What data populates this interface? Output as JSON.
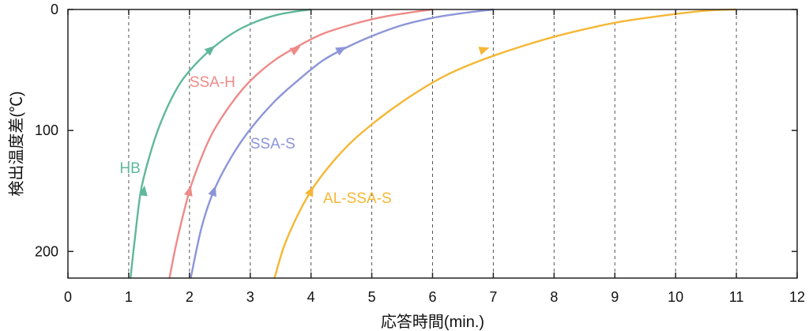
{
  "chart_data": {
    "type": "line",
    "xlabel": "応答時間(min.)",
    "ylabel": "検出温度差(℃)",
    "xlim": [
      0,
      12
    ],
    "ylim": [
      0,
      222
    ],
    "y_inverted": true,
    "x_ticks": [
      "0",
      "1",
      "2",
      "3",
      "4",
      "5",
      "6",
      "7",
      "8",
      "9",
      "10",
      "11",
      "12"
    ],
    "y_ticks": [
      "0",
      "100",
      "200"
    ],
    "grid": "vertical-dashed",
    "series": [
      {
        "name": "HB",
        "color": "#5fb89b",
        "x": [
          1.03,
          1.1,
          1.2,
          1.35,
          1.5,
          1.7,
          1.9,
          2.2,
          2.5,
          2.8,
          3.1,
          3.4,
          3.7,
          4.0
        ],
        "y": [
          222,
          190,
          150,
          120,
          97,
          74,
          57,
          40,
          27,
          17,
          10,
          5,
          2,
          0
        ]
      },
      {
        "name": "SSA-H",
        "color": "#ee8a88",
        "x": [
          1.67,
          1.8,
          2.0,
          2.2,
          2.4,
          2.7,
          3.0,
          3.4,
          3.8,
          4.2,
          4.7,
          5.2,
          5.7,
          6.0
        ],
        "y": [
          222,
          190,
          150,
          122,
          100,
          77,
          59,
          42,
          30,
          20,
          12,
          6,
          2,
          0
        ]
      },
      {
        "name": "SSA-S",
        "color": "#8c95d8",
        "x": [
          2.02,
          2.2,
          2.4,
          2.7,
          3.0,
          3.4,
          3.8,
          4.2,
          4.6,
          5.0,
          5.5,
          6.0,
          6.5,
          7.0
        ],
        "y": [
          222,
          180,
          150,
          121,
          99,
          76,
          58,
          42,
          31,
          22,
          13,
          7,
          3,
          0
        ]
      },
      {
        "name": "AL-SSA-S",
        "color": "#f5b735",
        "x": [
          3.4,
          3.6,
          4.0,
          4.5,
          5.0,
          5.6,
          6.2,
          6.8,
          7.5,
          8.2,
          9.0,
          9.8,
          10.5,
          11.0
        ],
        "y": [
          222,
          190,
          150,
          118,
          95,
          73,
          55,
          42,
          30,
          20,
          11,
          5,
          1,
          0
        ]
      }
    ],
    "arrows": [
      {
        "series": "HB",
        "x": 1.25,
        "y": 150
      },
      {
        "series": "HB",
        "x": 2.35,
        "y": 33
      },
      {
        "series": "SSA-H",
        "x": 2.0,
        "y": 150
      },
      {
        "series": "SSA-H",
        "x": 3.75,
        "y": 33
      },
      {
        "series": "SSA-S",
        "x": 2.4,
        "y": 150
      },
      {
        "series": "SSA-S",
        "x": 4.5,
        "y": 33
      },
      {
        "series": "AL-SSA-S",
        "x": 4.0,
        "y": 150
      },
      {
        "series": "AL-SSA-S",
        "x": 6.85,
        "y": 33
      }
    ],
    "annotations": [
      {
        "text": "HB",
        "series": "HB",
        "x": 0.85,
        "y": 135
      },
      {
        "text": "SSA-H",
        "series": "SSA-H",
        "x": 2.0,
        "y": 64
      },
      {
        "text": "SSA-S",
        "series": "SSA-S",
        "x": 3.0,
        "y": 115
      },
      {
        "text": "AL-SSA-S",
        "series": "AL-SSA-S",
        "x": 4.2,
        "y": 160
      }
    ]
  }
}
